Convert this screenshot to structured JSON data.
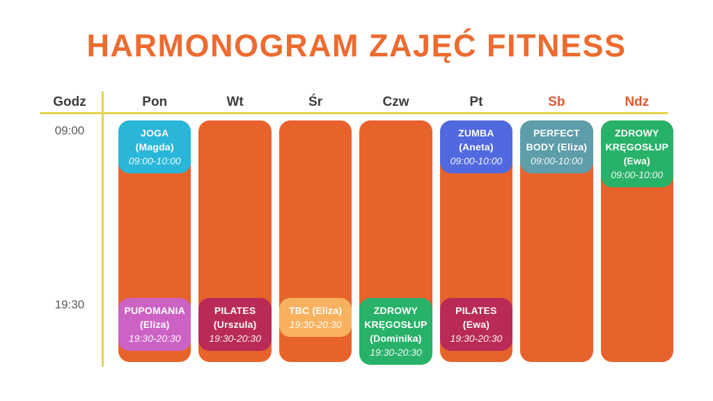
{
  "title": "HARMONOGRAM ZAJĘĆ FITNESS",
  "colors": {
    "title_orange": "#ED6B2F",
    "column_orange": "#E8632C",
    "divider_yellow": "#E5D350",
    "day_label_dark": "#3D3D3D",
    "weekend_label_orange": "#DE5A2E",
    "time_label_gray": "#595959"
  },
  "header": {
    "time_column_label": "Godz",
    "days": [
      {
        "label": "Pon",
        "weekend": false
      },
      {
        "label": "Wt",
        "weekend": false
      },
      {
        "label": "Śr",
        "weekend": false
      },
      {
        "label": "Czw",
        "weekend": false
      },
      {
        "label": "Pt",
        "weekend": false
      },
      {
        "label": "Sb",
        "weekend": true
      },
      {
        "label": "Ndz",
        "weekend": true
      }
    ]
  },
  "time_labels": [
    "09:00",
    "19:30"
  ],
  "schedule": {
    "columns": [
      {
        "day": "Pon",
        "morning": {
          "lines": [
            "JOGA",
            "(Magda)"
          ],
          "time": "09:00-10:00",
          "color": "#29B6D8"
        },
        "evening": {
          "lines": [
            "PUPOMANIA",
            "(Eliza)"
          ],
          "time": "19:30-20:30",
          "color": "#CC63C4"
        }
      },
      {
        "day": "Wt",
        "evening": {
          "lines": [
            "PILATES",
            "(Urszula)"
          ],
          "time": "19:30-20:30",
          "color": "#B92A57"
        }
      },
      {
        "day": "Śr",
        "evening": {
          "lines": [
            "TBC (Eliza)"
          ],
          "time": "19:30-20:30",
          "color": "#F8B25F"
        }
      },
      {
        "day": "Czw",
        "evening": {
          "lines": [
            "ZDROWY",
            "KRĘGOSŁUP",
            "(Dominika)"
          ],
          "time": "19:30-20:30",
          "color": "#28B169"
        }
      },
      {
        "day": "Pt",
        "morning": {
          "lines": [
            "ZUMBA",
            "(Aneta)"
          ],
          "time": "09:00-10:00",
          "color": "#5069DF"
        },
        "evening": {
          "lines": [
            "PILATES",
            "(Ewa)"
          ],
          "time": "19:30-20:30",
          "color": "#B92A57"
        }
      },
      {
        "day": "Sb",
        "morning": {
          "lines": [
            "PERFECT",
            "BODY (Eliza)"
          ],
          "time": "09:00-10:00",
          "color": "#5E9DAA"
        }
      },
      {
        "day": "Ndz",
        "morning": {
          "lines": [
            "ZDROWY",
            "KRĘGOSŁUP",
            "(Ewa)"
          ],
          "time": "09:00-10:00",
          "color": "#28B169"
        }
      }
    ]
  },
  "chart_data": {
    "type": "table",
    "title": "HARMONOGRAM ZAJĘĆ FITNESS",
    "columns": [
      "Godz",
      "Pon",
      "Wt",
      "Śr",
      "Czw",
      "Pt",
      "Sb",
      "Ndz"
    ],
    "rows": [
      [
        "09:00",
        "JOGA (Magda) 09:00-10:00",
        "",
        "",
        "",
        "ZUMBA (Aneta) 09:00-10:00",
        "PERFECT BODY (Eliza) 09:00-10:00",
        "ZDROWY KRĘGOSŁUP (Ewa) 09:00-10:00"
      ],
      [
        "19:30",
        "PUPOMANIA (Eliza) 19:30-20:30",
        "PILATES (Urszula) 19:30-20:30",
        "TBC (Eliza) 19:30-20:30",
        "ZDROWY KRĘGOSŁUP (Dominika) 19:30-20:30",
        "PILATES (Ewa) 19:30-20:30",
        "",
        ""
      ]
    ]
  }
}
